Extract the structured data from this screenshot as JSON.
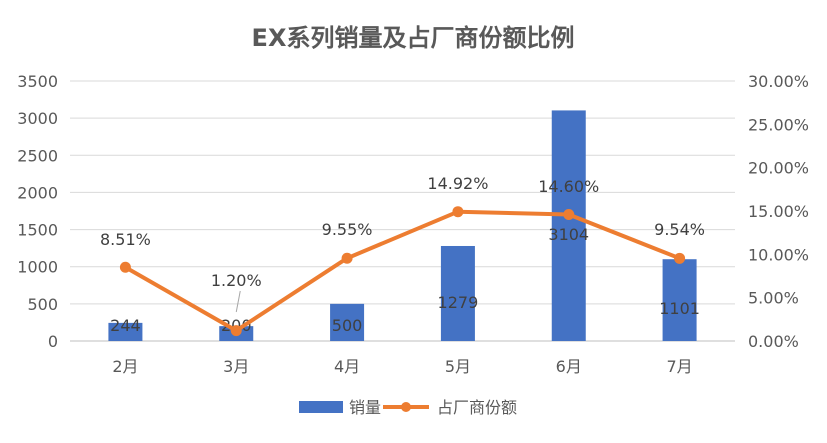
{
  "chart_data": {
    "type": "bar+line",
    "title": "EX系列销量及占厂商份额比例",
    "categories": [
      "2月",
      "3月",
      "4月",
      "5月",
      "6月",
      "7月"
    ],
    "series": [
      {
        "name": "销量",
        "type": "bar",
        "axis": "left",
        "color": "#4472C4",
        "values": [
          244,
          200,
          500,
          1279,
          3104,
          1101
        ],
        "labels": [
          "244",
          "200",
          "500",
          "1279",
          "3104",
          "1101"
        ]
      },
      {
        "name": "占厂商份额",
        "type": "line",
        "axis": "right",
        "color": "#ED7D31",
        "values": [
          8.51,
          1.2,
          9.55,
          14.92,
          14.6,
          9.54
        ],
        "labels": [
          "8.51%",
          "1.20%",
          "9.55%",
          "14.92%",
          "14.60%",
          "9.54%"
        ]
      }
    ],
    "y_left": {
      "min": 0,
      "max": 3500,
      "ticks": [
        "0",
        "500",
        "1000",
        "1500",
        "2000",
        "2500",
        "3000",
        "3500"
      ]
    },
    "y_right": {
      "min": 0,
      "max": 30,
      "ticks": [
        "0.00%",
        "5.00%",
        "10.00%",
        "15.00%",
        "20.00%",
        "25.00%",
        "30.00%"
      ]
    },
    "grid": true,
    "legend": "bottom"
  }
}
